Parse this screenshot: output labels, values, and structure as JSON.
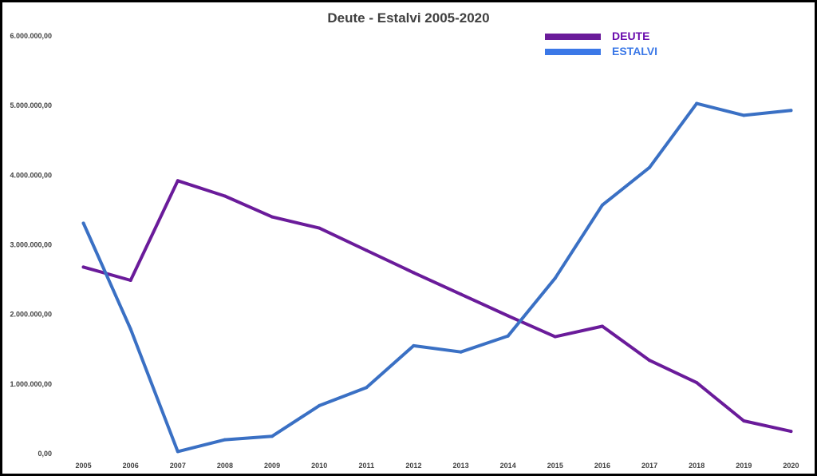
{
  "chart_data": {
    "type": "line",
    "title": "Deute - Estalvi 2005-2020",
    "categories": [
      "2005",
      "2006",
      "2007",
      "2008",
      "2009",
      "2010",
      "2011",
      "2012",
      "2013",
      "2014",
      "2015",
      "2016",
      "2017",
      "2018",
      "2019",
      "2020"
    ],
    "series": [
      {
        "name": "DEUTE",
        "color": "#6a1b9a",
        "values": [
          2680000,
          2490000,
          3920000,
          3700000,
          3400000,
          3240000,
          2920000,
          2600000,
          2290000,
          1980000,
          1680000,
          1830000,
          1340000,
          1020000,
          470000,
          320000
        ]
      },
      {
        "name": "ESTALVI",
        "color": "#3a70c4",
        "values": [
          3310000,
          1790000,
          30000,
          200000,
          250000,
          690000,
          950000,
          1550000,
          1460000,
          1690000,
          2520000,
          3570000,
          4110000,
          5030000,
          4860000,
          4930000
        ]
      }
    ],
    "ylim": [
      0,
      6000000
    ],
    "yticks": [
      0,
      1000000,
      2000000,
      3000000,
      4000000,
      5000000,
      6000000
    ],
    "ytick_labels": [
      "0,00",
      "1.000.000,00",
      "2.000.000,00",
      "3.000.000,00",
      "4.000.000,00",
      "5.000.000,00",
      "6.000.000,00"
    ],
    "xlabel": "",
    "ylabel": "",
    "grid": false,
    "legend_position": "top-right",
    "legend_label_colors": {
      "DEUTE": "#6a0dad",
      "ESTALVI": "#3b78e7"
    },
    "legend_swatch_colors": {
      "DEUTE": "#6a1b9a",
      "ESTALVI": "#3b78e7"
    }
  }
}
